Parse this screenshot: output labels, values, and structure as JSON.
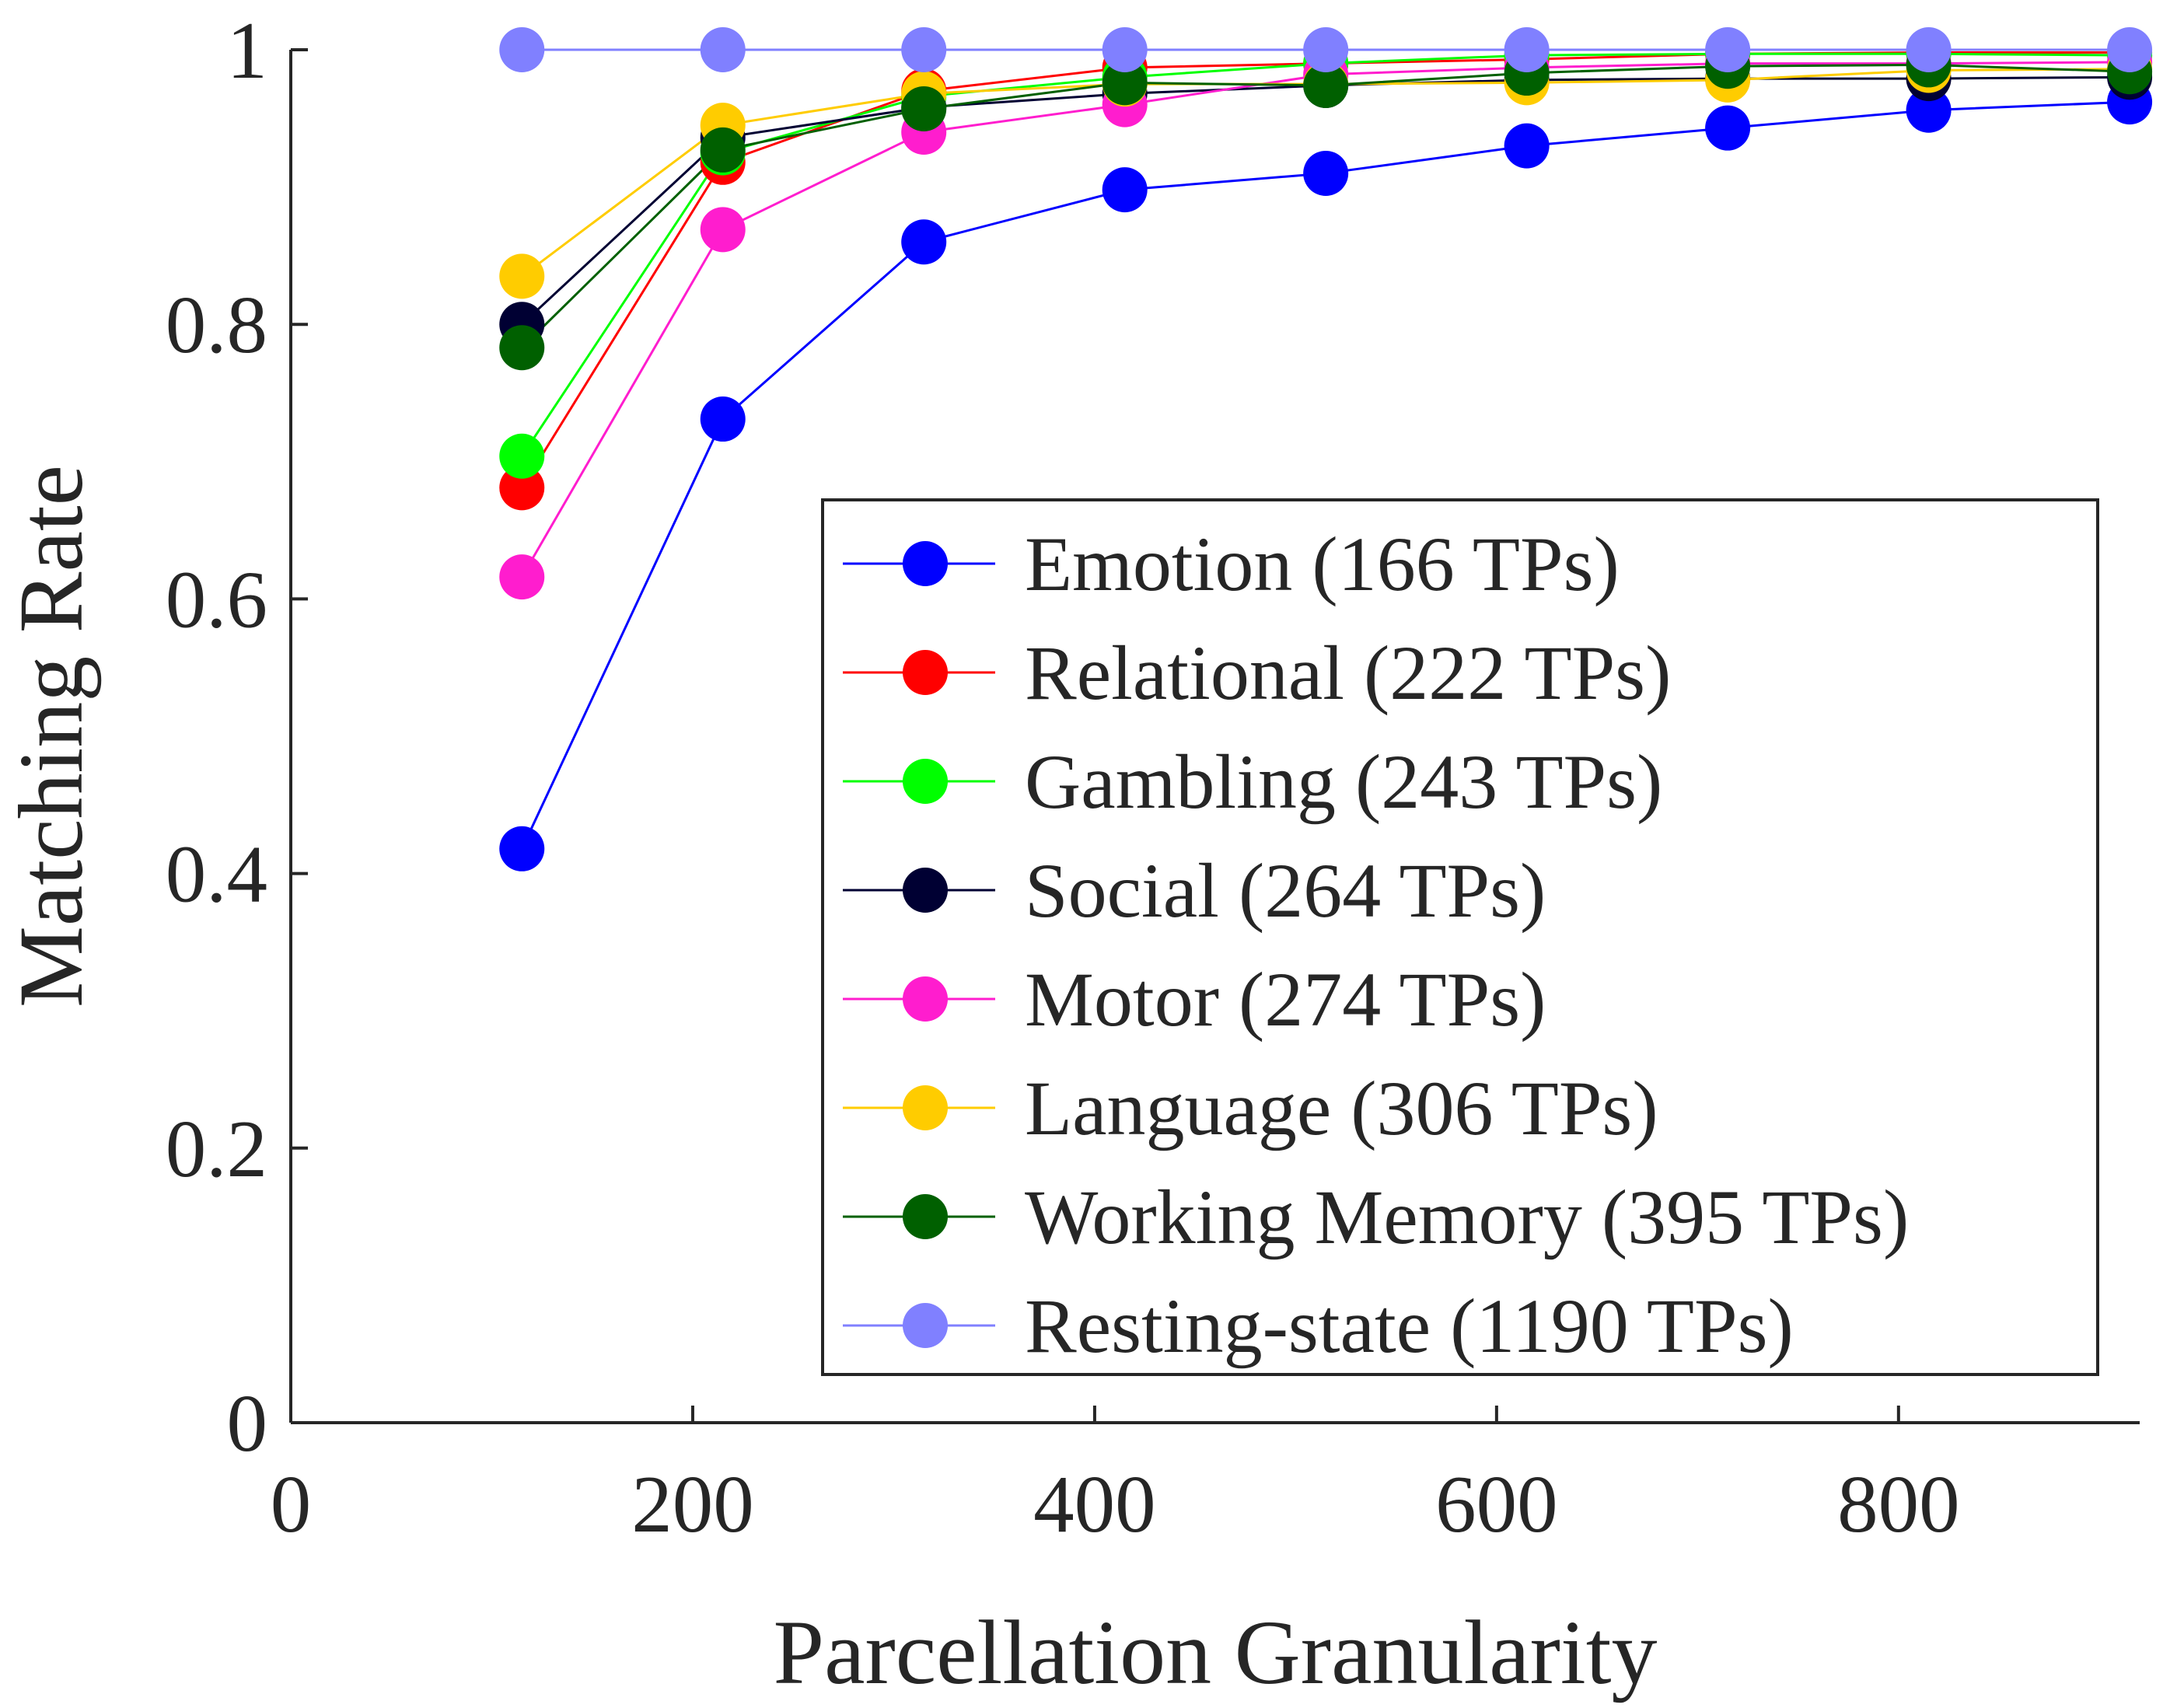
{
  "chart_data": {
    "type": "line",
    "title": "",
    "xlabel": "Parcellation Granularity",
    "ylabel": "Matching Rate",
    "xlim": [
      0,
      920
    ],
    "ylim": [
      0,
      1
    ],
    "xticks": [
      0,
      200,
      400,
      600,
      800
    ],
    "yticks": [
      0,
      0.2,
      0.4,
      0.6,
      0.8,
      1
    ],
    "xtick_labels": [
      "0",
      "200",
      "400",
      "600",
      "800"
    ],
    "ytick_labels": [
      "0",
      "0.2",
      "0.4",
      "0.6",
      "0.8",
      "1"
    ],
    "grid": false,
    "legend_position": "bottom-right",
    "x": [
      115,
      215,
      315,
      415,
      515,
      615,
      715,
      815,
      915
    ],
    "series": [
      {
        "name": "Emotion (166 TPs)",
        "color": "#0000ff",
        "values": [
          0.418,
          0.731,
          0.86,
          0.898,
          0.91,
          0.93,
          0.943,
          0.956,
          0.962
        ]
      },
      {
        "name": "Relational (222 TPs)",
        "color": "#ff0000",
        "values": [
          0.681,
          0.918,
          0.97,
          0.987,
          0.99,
          0.993,
          0.997,
          0.998,
          0.998
        ]
      },
      {
        "name": "Gambling (243 TPs)",
        "color": "#00ff00",
        "values": [
          0.704,
          0.925,
          0.966,
          0.98,
          0.99,
          0.996,
          0.997,
          0.997,
          0.996
        ]
      },
      {
        "name": "Social (264 TPs)",
        "color": "#000033",
        "values": [
          0.8,
          0.936,
          0.958,
          0.968,
          0.974,
          0.978,
          0.979,
          0.979,
          0.98
        ]
      },
      {
        "name": "Motor (274 TPs)",
        "color": "#ff1dce",
        "values": [
          0.616,
          0.869,
          0.94,
          0.96,
          0.982,
          0.987,
          0.99,
          0.99,
          0.991
        ]
      },
      {
        "name": "Language (306 TPs)",
        "color": "#ffcc00",
        "values": [
          0.835,
          0.945,
          0.968,
          0.975,
          0.975,
          0.976,
          0.978,
          0.985,
          0.986
        ]
      },
      {
        "name": "Working Memory (395 TPs)",
        "color": "#006000",
        "values": [
          0.783,
          0.927,
          0.957,
          0.976,
          0.974,
          0.983,
          0.988,
          0.989,
          0.984
        ]
      },
      {
        "name": "Resting-state (1190 TPs)",
        "color": "#8080ff",
        "values": [
          1.0,
          1.0,
          1.0,
          1.0,
          1.0,
          1.0,
          1.0,
          1.0,
          1.0
        ]
      }
    ]
  }
}
